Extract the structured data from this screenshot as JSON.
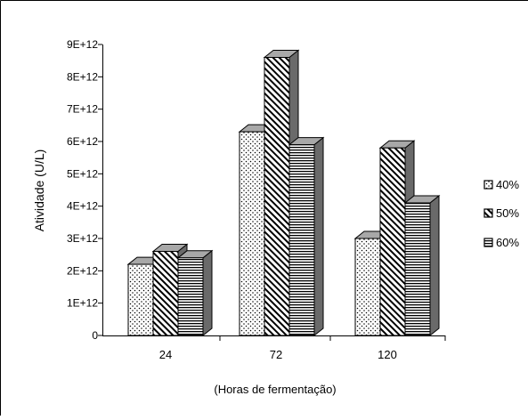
{
  "chart_data": {
    "type": "bar",
    "style": "3d-clustered-column",
    "title": "",
    "xlabel": "(Horas de fermentação)",
    "ylabel": "Atividade (U/L)",
    "categories": [
      "24",
      "72",
      "120"
    ],
    "series": [
      {
        "name": "40%",
        "values": [
          2200000000000.0,
          6300000000000.0,
          3000000000000.0
        ],
        "fill_pattern": "dots"
      },
      {
        "name": "50%",
        "values": [
          2600000000000.0,
          8600000000000.0,
          5800000000000.0
        ],
        "fill_pattern": "diagonal-hatch"
      },
      {
        "name": "60%",
        "values": [
          2400000000000.0,
          5900000000000.0,
          4100000000000.0
        ],
        "fill_pattern": "horizontal-lines"
      }
    ],
    "ylim": [
      0,
      9000000000000.0
    ],
    "y_tick_labels": [
      "0",
      "1E+12",
      "2E+12",
      "3E+12",
      "4E+12",
      "5E+12",
      "6E+12",
      "7E+12",
      "8E+12",
      "9E+12"
    ],
    "grid": false,
    "legend_position": "right",
    "legend_labels": [
      "40%",
      "50%",
      "60%"
    ],
    "colors": {
      "bar_side": "#6a6a6a",
      "bar_top": "#a8a8a8",
      "outline": "#000000",
      "background": "#ffffff"
    }
  }
}
